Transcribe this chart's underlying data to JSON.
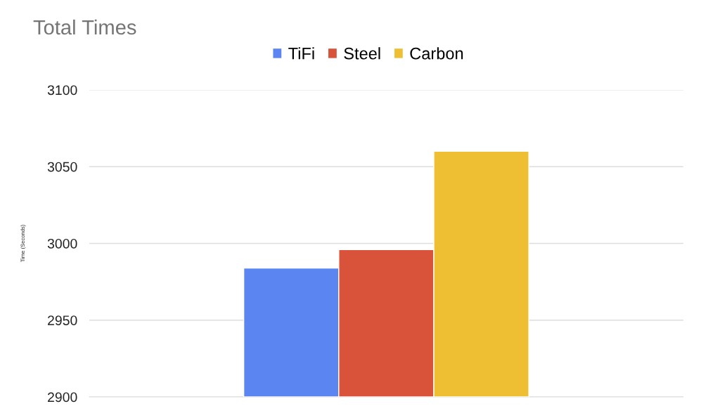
{
  "chart_data": {
    "type": "bar",
    "title": "Total Times",
    "ylabel": "Time (Seconds)",
    "categories": [
      null
    ],
    "series": [
      {
        "name": "TiFi",
        "color": "#5b85f1",
        "values": [
          2984
        ]
      },
      {
        "name": "Steel",
        "color": "#d9533b",
        "values": [
          2996
        ]
      },
      {
        "name": "Carbon",
        "color": "#efbf33",
        "values": [
          3060
        ]
      }
    ],
    "ylim": [
      2900,
      3100
    ],
    "yticks": [
      2900,
      2950,
      3000,
      3050,
      3100
    ],
    "grid": "y",
    "legend": "top"
  }
}
